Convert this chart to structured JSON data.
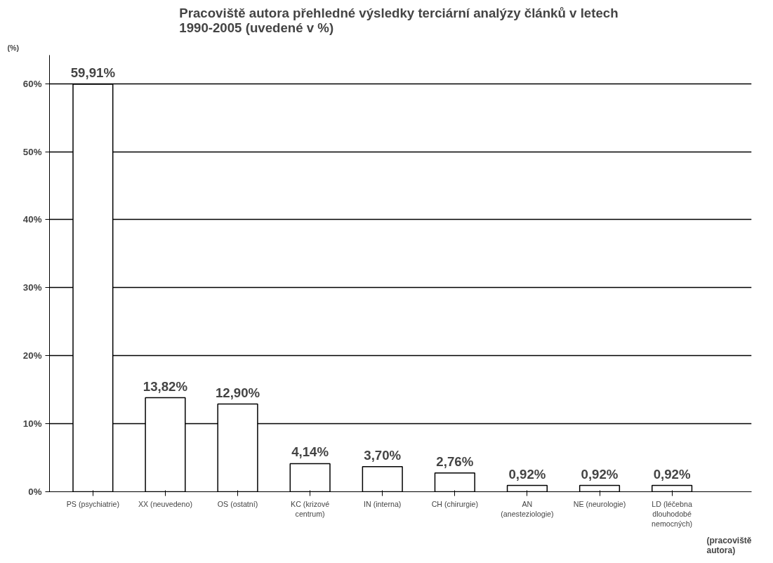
{
  "chart_data": {
    "type": "bar",
    "title": "Pracoviště autora  přehledné výsledky terciární analýzy článků v letech\n1990-2005 (uvedené v %)",
    "xlabel": "(pracoviště\nautora)",
    "ylabel": "(%)",
    "categories": [
      "PS (psychiatrie)",
      "XX (neuvedeno)",
      "OS (ostatní)",
      "KC (krizové\ncentrum)",
      "IN (interna)",
      "CH (chirurgie)",
      "AN\n(anesteziologie)",
      "NE (neurologie)",
      "LD (léčebna\ndlouhodobé\nnemocných)"
    ],
    "values": [
      59.91,
      13.82,
      12.9,
      4.14,
      3.7,
      2.76,
      0.92,
      0.92,
      0.92
    ],
    "value_labels": [
      "59,91%",
      "13,82%",
      "12,90%",
      "4,14%",
      "3,70%",
      "2,76%",
      "0,92%",
      "0,92%",
      "0,92%"
    ],
    "color": "#ffffff",
    "ylim": [
      0,
      60
    ],
    "yticks": [
      {
        "value": 0,
        "label": "0%"
      },
      {
        "value": 10,
        "label": "10%"
      },
      {
        "value": 20,
        "label": "20%"
      },
      {
        "value": 30,
        "label": "30%"
      },
      {
        "value": 40,
        "label": "40%"
      },
      {
        "value": 50,
        "label": "50%"
      },
      {
        "value": 60,
        "label": "60%"
      }
    ],
    "grid": "y"
  }
}
